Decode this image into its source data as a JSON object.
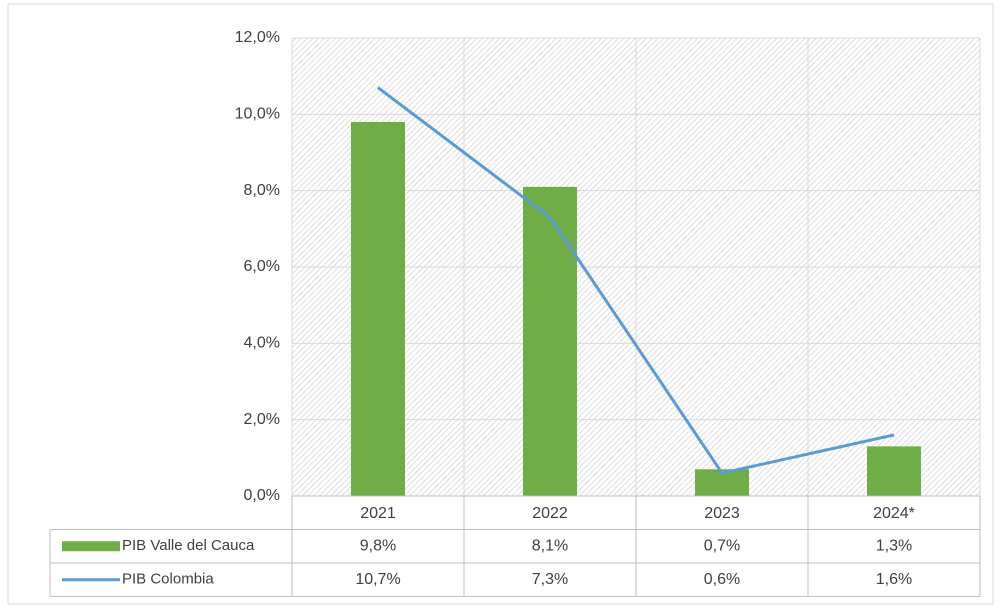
{
  "chart_data": {
    "type": "bar",
    "categories": [
      "2021",
      "2022",
      "2023",
      "2024*"
    ],
    "series": [
      {
        "name": "PIB Valle del Cauca",
        "type": "bar",
        "color": "#70ad47",
        "values": [
          9.8,
          8.1,
          0.7,
          1.3
        ],
        "value_labels": [
          "9,8%",
          "8,1%",
          "0,7%",
          "1,3%"
        ]
      },
      {
        "name": "PIB Colombia",
        "type": "line",
        "color": "#5b9bd5",
        "values": [
          10.7,
          7.3,
          0.6,
          1.6
        ],
        "value_labels": [
          "10,7%",
          "7,3%",
          "0,6%",
          "1,6%"
        ]
      }
    ],
    "ylim": [
      0,
      12
    ],
    "yticks": [
      {
        "value": 0,
        "label": "0,0%"
      },
      {
        "value": 2,
        "label": "2,0%"
      },
      {
        "value": 4,
        "label": "4,0%"
      },
      {
        "value": 6,
        "label": "6,0%"
      },
      {
        "value": 8,
        "label": "8,0%"
      },
      {
        "value": 10,
        "label": "10,0%"
      },
      {
        "value": 12,
        "label": "12,0%"
      }
    ],
    "grid": true,
    "legend": "table"
  }
}
